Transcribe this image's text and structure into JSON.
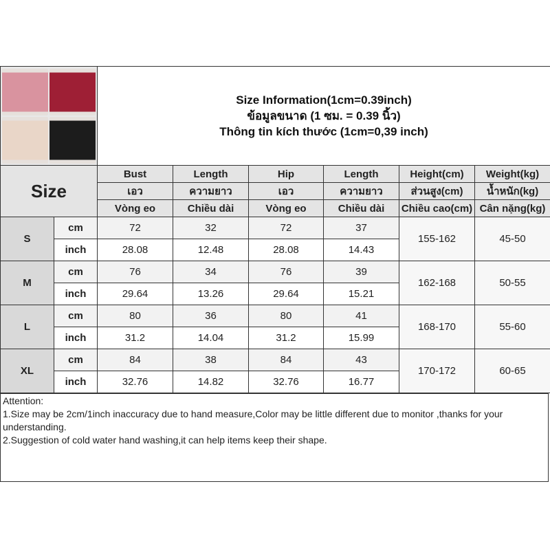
{
  "title": {
    "lines": [
      "Size Information(1cm=0.39inch)",
      "ข้อมูลขนาด (1 ซม. = 0.39 นิ้ว)",
      "Thông tin kích thước (1cm=0,39 inch)"
    ]
  },
  "product_image": {
    "variants": [
      {
        "color": "#d9939f"
      },
      {
        "color": "#9e1f35"
      },
      {
        "color": "#e9d6c8"
      },
      {
        "color": "#1c1c1c"
      }
    ]
  },
  "header": {
    "size_label": "Size",
    "rows": [
      [
        "Bust",
        "Length",
        "Hip",
        "Length",
        "Height(cm)",
        "Weight(kg)"
      ],
      [
        "เอว",
        "ความยาว",
        "เอว",
        "ความยาว",
        "ส่วนสูง(cm)",
        "น้ำหนัก(kg)"
      ],
      [
        "Vòng eo",
        "Chiều dài",
        "Vòng eo",
        "Chiều dài",
        "Chiều cao(cm)",
        "Cân nặng(kg)"
      ]
    ]
  },
  "sizes": [
    {
      "size": "S",
      "cm_label": "cm",
      "inch_label": "inch",
      "cm": [
        "72",
        "32",
        "72",
        "37"
      ],
      "inch": [
        "28.08",
        "12.48",
        "28.08",
        "14.43"
      ],
      "height": "155-162",
      "weight": "45-50"
    },
    {
      "size": "M",
      "cm_label": "cm",
      "inch_label": "inch",
      "cm": [
        "76",
        "34",
        "76",
        "39"
      ],
      "inch": [
        "29.64",
        "13.26",
        "29.64",
        "15.21"
      ],
      "height": "162-168",
      "weight": "50-55"
    },
    {
      "size": "L",
      "cm_label": "cm",
      "inch_label": "inch",
      "cm": [
        "80",
        "36",
        "80",
        "41"
      ],
      "inch": [
        "31.2",
        "14.04",
        "31.2",
        "15.99"
      ],
      "height": "168-170",
      "weight": "55-60"
    },
    {
      "size": "XL",
      "cm_label": "cm",
      "inch_label": "inch",
      "cm": [
        "84",
        "38",
        "84",
        "43"
      ],
      "inch": [
        "32.76",
        "14.82",
        "32.76",
        "16.77"
      ],
      "height": "170-172",
      "weight": "60-65"
    }
  ],
  "attention": [
    "Attention:",
    "1.Size may be 2cm/1inch inaccuracy due to hand measure,Color may be little different due to monitor ,thanks for your understanding.",
    "2.Suggestion of cold water hand washing,it can help items keep their shape."
  ]
}
